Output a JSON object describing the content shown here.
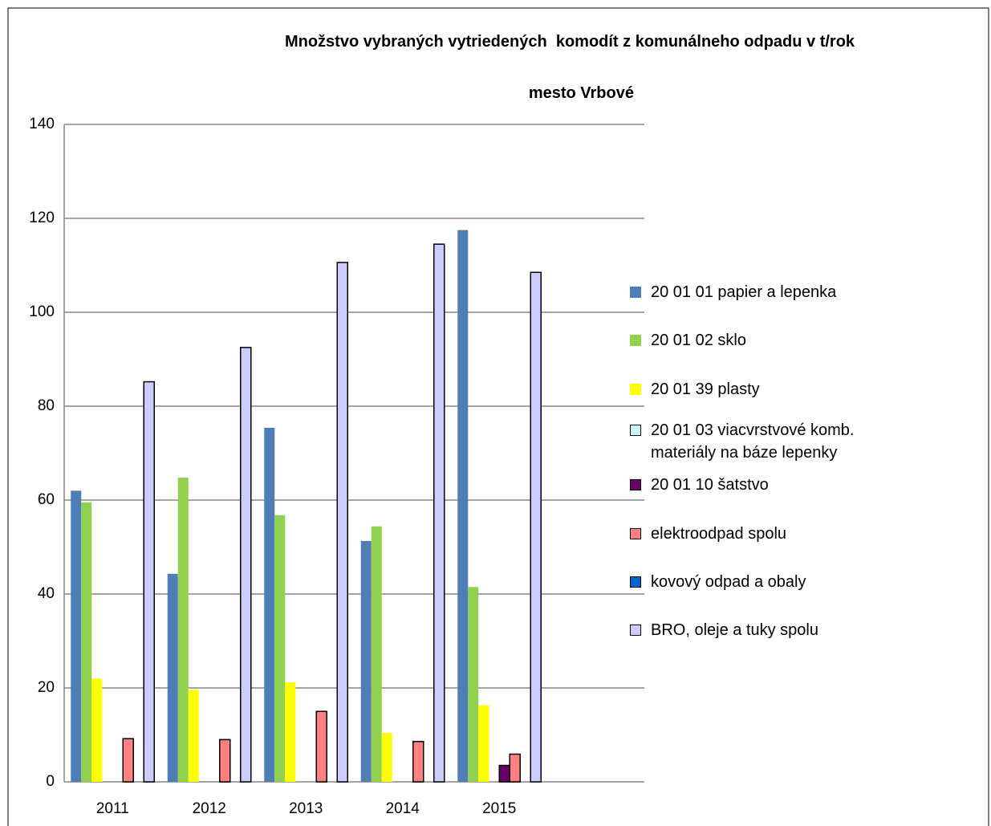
{
  "chart_data": {
    "type": "bar",
    "title": "Množstvo vybraných vytriedených  komodít z komunálneho odpadu v t/rok",
    "subtitle": "mesto Vrbové",
    "categories": [
      "2011",
      "2012",
      "2013",
      "2014",
      "2015",
      null
    ],
    "ylim": [
      0,
      140
    ],
    "yticks": [
      0,
      20,
      40,
      60,
      80,
      100,
      120,
      140
    ],
    "grid": true,
    "legend": "right",
    "series": [
      {
        "name": "20 01 01 papier a lepenka",
        "color": "#4f7db5",
        "values": [
          62,
          44.3,
          75.4,
          51.3,
          117.5,
          null
        ]
      },
      {
        "name": "20 01 02 sklo",
        "color": "#92d050",
        "values": [
          59.5,
          64.8,
          56.8,
          54.4,
          41.5,
          null
        ]
      },
      {
        "name": "20 01 39 plasty",
        "color": "#ffff00",
        "values": [
          22,
          19.6,
          21.2,
          10.4,
          16.3,
          null
        ]
      },
      {
        "name": "20 01 03 viacvrstvové komb. materiály na báze lepenky",
        "color": "#ccffff",
        "values": [
          null,
          null,
          null,
          null,
          null,
          null
        ]
      },
      {
        "name": "20 01 10 šatstvo",
        "color": "#660066",
        "values": [
          null,
          null,
          null,
          null,
          3.5,
          null
        ]
      },
      {
        "name": "elektroodpad spolu",
        "color": "#ff8080",
        "values": [
          9.2,
          9,
          15,
          8.6,
          5.9,
          null
        ]
      },
      {
        "name": "kovový odpad a obaly",
        "color": "#0066cc",
        "values": [
          null,
          null,
          null,
          null,
          null,
          null
        ]
      },
      {
        "name": "BRO, oleje a tuky spolu",
        "color": "#ccccff",
        "values": [
          85.2,
          92.5,
          110.6,
          114.5,
          108.5,
          null
        ]
      }
    ]
  }
}
